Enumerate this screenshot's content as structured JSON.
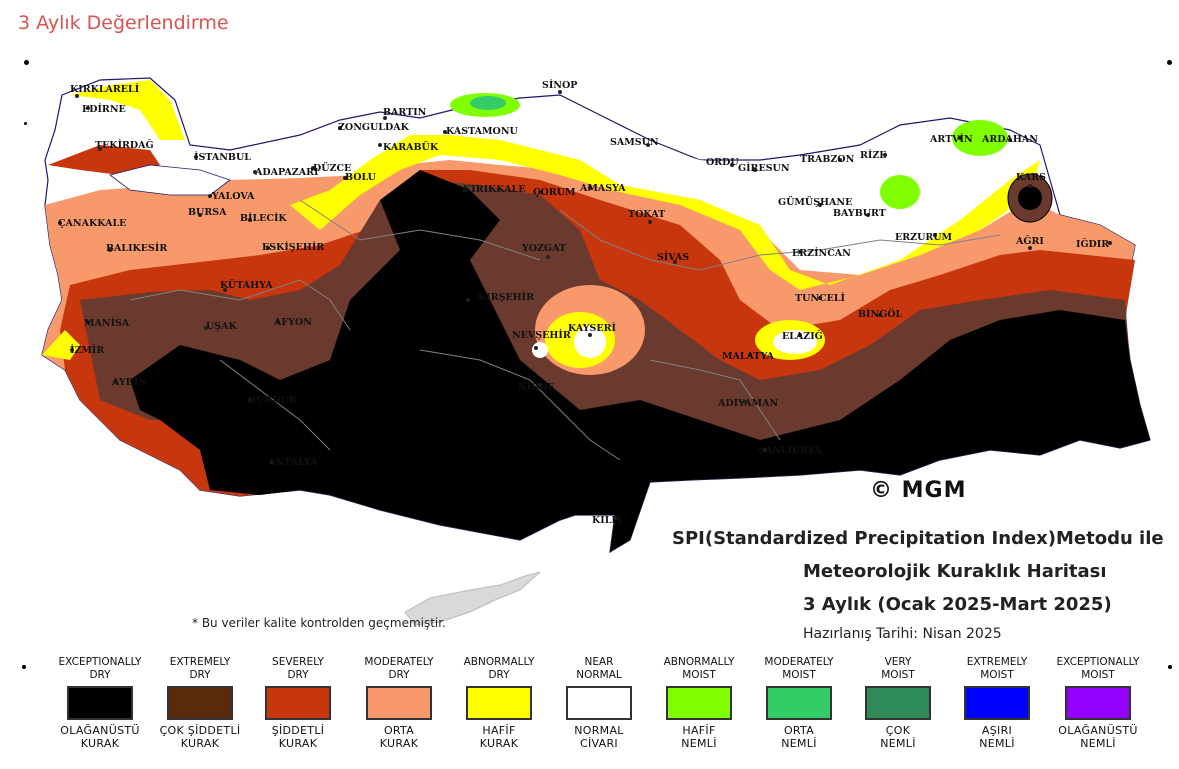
{
  "page": {
    "title": "3 Aylık Değerlendirme"
  },
  "map": {
    "copyright": "© MGM",
    "title_line1": "SPI(Standardized Precipitation Index)Metodu ile",
    "title_line2": "Meteorolojik Kuraklık Haritası",
    "title_line3": "3 Aylık (Ocak 2025-Mart 2025)",
    "prepared": "Hazırlanış Tarihi: Nisan 2025",
    "note": "* Bu veriler kalite kontrolden geçmemiştir.",
    "cities": [
      "KIRKLARELİ",
      "EDİRNE",
      "TEKİRDAĞ",
      "İSTANBUL",
      "YALOVA",
      "ÇANAKKALE",
      "BALIKESİR",
      "BURSA",
      "BİLECİK",
      "ESKİŞEHİR",
      "KÜTAHYA",
      "MANİSA",
      "İZMİR",
      "AYDIN",
      "UŞAK",
      "AFYON",
      "BURDUR",
      "ANTALYA",
      "BARTIN",
      "ZONGULDAK",
      "KARABÜK",
      "KASTAMONU",
      "DÜZCE",
      "BOLU",
      "ADAPAZARI",
      "KIRIKKALE",
      "ÇORUM",
      "AMASYA",
      "TOKAT",
      "YOZGAT",
      "KIRŞEHİR",
      "NEVŞEHİR",
      "KAYSERİ",
      "NİĞDE",
      "SİNOP",
      "SAMSUN",
      "ORDU",
      "GİRESUN",
      "TRABZON",
      "RİZE",
      "ARTVİN",
      "ARDAHAN",
      "GÜMÜŞHANE",
      "BAYBURT",
      "ERZURUM",
      "KARS",
      "AĞRI",
      "IĞDIR",
      "ERZİNCAN",
      "SİVAS",
      "TUNCELİ",
      "BİNGÖL",
      "ELAZIĞ",
      "MALATYA",
      "ADIYAMAN",
      "ŞANLIURFA",
      "KİLİS"
    ]
  },
  "legend": [
    {
      "en1": "EXCEPTIONALLY",
      "en2": "DRY",
      "tr1": "OLAĞANÜSTÜ",
      "tr2": "KURAK",
      "color": "#000000"
    },
    {
      "en1": "EXTREMELY",
      "en2": "DRY",
      "tr1": "ÇOK ŞİDDETLİ",
      "tr2": "KURAK",
      "color": "#5a2a0c"
    },
    {
      "en1": "SEVERELY",
      "en2": "DRY",
      "tr1": "ŞİDDETLİ",
      "tr2": "KURAK",
      "color": "#c8360e"
    },
    {
      "en1": "MODERATELY",
      "en2": "DRY",
      "tr1": "ORTA",
      "tr2": "KURAK",
      "color": "#f7996a"
    },
    {
      "en1": "ABNORMALLY",
      "en2": "DRY",
      "tr1": "HAFİF",
      "tr2": "KURAK",
      "color": "#ffff00"
    },
    {
      "en1": "NEAR",
      "en2": "NORMAL",
      "tr1": "NORMAL",
      "tr2": "CİVARI",
      "color": "#ffffff"
    },
    {
      "en1": "ABNORMALLY",
      "en2": "MOIST",
      "tr1": "HAFİF",
      "tr2": "NEMLİ",
      "color": "#7fff00"
    },
    {
      "en1": "MODERATELY",
      "en2": "MOIST",
      "tr1": "ORTA",
      "tr2": "NEMLİ",
      "color": "#33cc66"
    },
    {
      "en1": "VERY",
      "en2": "MOIST",
      "tr1": "ÇOK",
      "tr2": "NEMLİ",
      "color": "#2e8b57"
    },
    {
      "en1": "EXTREMELY",
      "en2": "MOIST",
      "tr1": "AŞIRI",
      "tr2": "NEMLİ",
      "color": "#0000ff"
    },
    {
      "en1": "EXCEPTIONALLY",
      "en2": "MOIST",
      "tr1": "OLAĞANÜSTÜ",
      "tr2": "NEMLİ",
      "color": "#9400ff"
    }
  ]
}
